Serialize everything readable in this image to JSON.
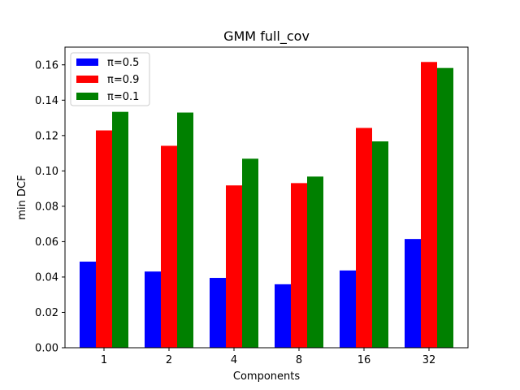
{
  "chart_data": {
    "type": "bar",
    "title": "GMM full_cov",
    "xlabel": "Components",
    "ylabel": "min DCF",
    "categories": [
      "1",
      "2",
      "4",
      "8",
      "16",
      "32"
    ],
    "ylim": [
      0,
      0.17
    ],
    "yticks": [
      "0.00",
      "0.02",
      "0.04",
      "0.06",
      "0.08",
      "0.10",
      "0.12",
      "0.14",
      "0.16"
    ],
    "grid": false,
    "legend_position": "top-left",
    "series": [
      {
        "name": "π=0.5",
        "color": "#0000ff",
        "values": [
          0.0487,
          0.0431,
          0.0395,
          0.0359,
          0.0437,
          0.0615
        ]
      },
      {
        "name": "π=0.9",
        "color": "#ff0000",
        "values": [
          0.1229,
          0.1142,
          0.0918,
          0.0931,
          0.1243,
          0.1616
        ]
      },
      {
        "name": "π=0.1",
        "color": "#008000",
        "values": [
          0.1334,
          0.133,
          0.1069,
          0.0968,
          0.1167,
          0.1582
        ]
      }
    ]
  }
}
